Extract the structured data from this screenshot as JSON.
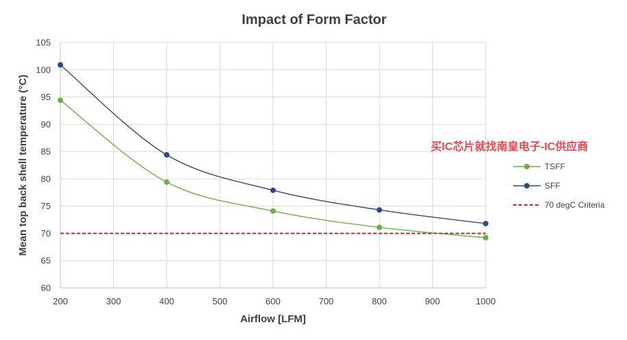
{
  "chart_data": {
    "type": "line",
    "title": "Impact of Form Factor",
    "xlabel": "Airflow [LFM]",
    "ylabel": "Mean top back shell temperature (°C)",
    "xlim": [
      200,
      1000
    ],
    "ylim": [
      60,
      105
    ],
    "xticks": [
      200,
      300,
      400,
      500,
      600,
      700,
      800,
      900,
      1000
    ],
    "yticks": [
      60,
      65,
      70,
      75,
      80,
      85,
      90,
      95,
      100,
      105
    ],
    "grid": true,
    "legend_position": "right",
    "series": [
      {
        "name": "TSFF",
        "color": "#70ad47",
        "x": [
          200,
          400,
          600,
          800,
          1000
        ],
        "y": [
          94.4,
          79.4,
          74.1,
          71.1,
          69.2
        ],
        "style": "smooth-line-markers"
      },
      {
        "name": "SFF",
        "color": "#2f4a7f",
        "x": [
          200,
          400,
          600,
          800,
          1000
        ],
        "y": [
          100.9,
          84.4,
          77.9,
          74.3,
          71.8
        ],
        "style": "smooth-line-markers"
      },
      {
        "name": "70 degC Criteria",
        "color": "#c0282d",
        "x": [
          200,
          1000
        ],
        "y": [
          70,
          70
        ],
        "style": "dashed"
      }
    ]
  },
  "watermark": "买IC芯片就找南皇电子-IC供应商"
}
